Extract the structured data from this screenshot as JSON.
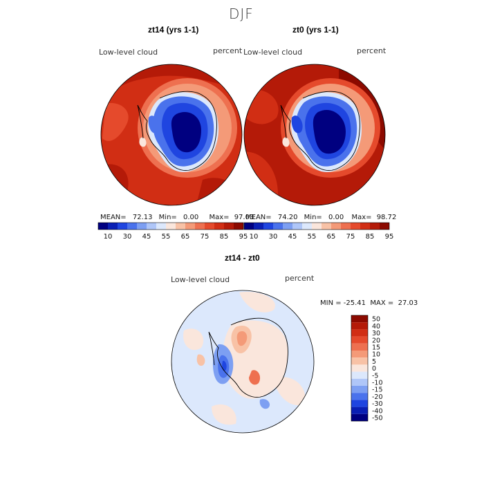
{
  "figure": {
    "season": "DJF",
    "panels": [
      {
        "title": "zt14 (yrs 1-1)",
        "variable": "Low-level cloud",
        "units": "percent",
        "stats": {
          "mean_label": "MEAN=",
          "mean": "72.13",
          "min_label": "Min=",
          "min": "0.00",
          "max_label": "Max=",
          "max": "97.03"
        }
      },
      {
        "title": "zt0 (yrs 1-1)",
        "variable": "Low-level cloud",
        "units": "percent",
        "stats": {
          "mean_label": "MEAN=",
          "mean": "74.20",
          "min_label": "Min=",
          "min": "0.00",
          "max_label": "Max=",
          "max": "98.72"
        }
      }
    ],
    "shared_colorbar": {
      "ticks": [
        "10",
        "30",
        "45",
        "55",
        "65",
        "75",
        "85",
        "95"
      ],
      "colors": [
        "#000080",
        "#0a1fb4",
        "#1f45e0",
        "#4a72ec",
        "#7d9ff2",
        "#afc6f8",
        "#dce8fc",
        "#fae6dc",
        "#f8c2a6",
        "#f49a78",
        "#ee7050",
        "#e54a2c",
        "#d12e14",
        "#b41a08",
        "#8c0a00"
      ]
    },
    "difference": {
      "title": "zt14 - zt0",
      "variable": "Low-level cloud",
      "units": "percent",
      "range_text": "MIN = -25.41  MAX =  27.03",
      "colorbar": {
        "ticks": [
          "50",
          "40",
          "30",
          "20",
          "15",
          "10",
          "5",
          "0",
          "-5",
          "-10",
          "-15",
          "-20",
          "-30",
          "-40",
          "-50"
        ],
        "colors": [
          "#8c0a00",
          "#b41a08",
          "#d12e14",
          "#e54a2c",
          "#ee7050",
          "#f49a78",
          "#f8c2a6",
          "#fae6dc",
          "#dce8fc",
          "#afc6f8",
          "#7d9ff2",
          "#4a72ec",
          "#1f45e0",
          "#0a1fb4",
          "#000080"
        ]
      }
    }
  }
}
